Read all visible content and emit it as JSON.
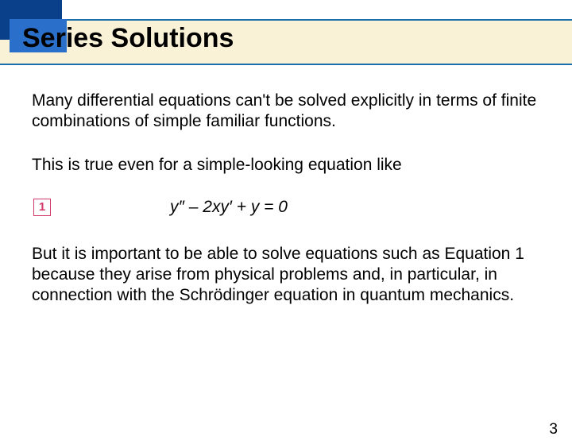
{
  "title": "Series Solutions",
  "paragraphs": {
    "p1": "Many differential equations can't be solved explicitly in terms of finite combinations of simple familiar functions.",
    "p2": "This is true even for a simple-looking equation like",
    "p3": "But it is important to be able to solve equations such as Equation 1 because they arise from physical problems and, in particular, in connection with the Schrödinger equation in quantum mechanics."
  },
  "equation": {
    "badge": "1",
    "text": "y″ – 2xy′ + y = 0"
  },
  "pageNumber": "3",
  "colors": {
    "band_bg": "#faf2d7",
    "band_border": "#1a6eaa",
    "corner_dark": "#0a3f8a",
    "corner_light": "#2a6fc9",
    "badge": "#d23a6a"
  }
}
